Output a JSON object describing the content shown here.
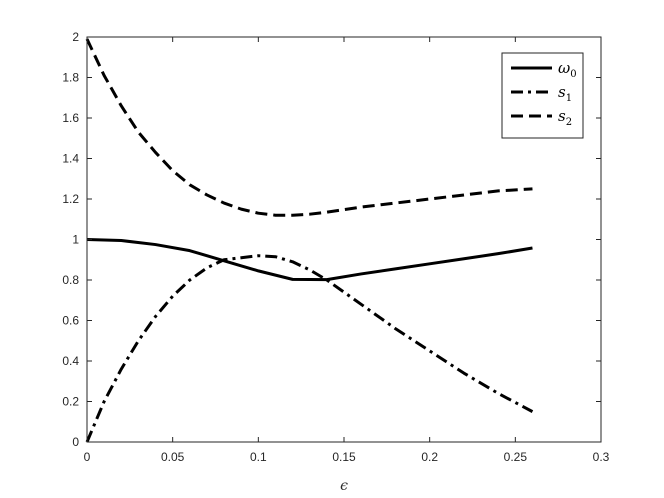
{
  "chart_data": {
    "type": "line",
    "xlabel": "ϵ",
    "ylabel": "",
    "title": "",
    "xlim": [
      0,
      0.3
    ],
    "ylim": [
      0,
      2
    ],
    "xticks": [
      "0",
      "0.05",
      "0.1",
      "0.15",
      "0.2",
      "0.25",
      "0.3"
    ],
    "yticks": [
      "0",
      "0.2",
      "0.4",
      "0.6",
      "0.8",
      "1",
      "1.2",
      "1.4",
      "1.6",
      "1.8",
      "2"
    ],
    "grid": false,
    "legend_position": "top-right",
    "colors": {
      "line": "#000000",
      "axis": "#262626"
    },
    "series": [
      {
        "name": "ω0",
        "label_base": "ω",
        "label_sub": "0",
        "style": "solid",
        "x": [
          0,
          0.02,
          0.04,
          0.06,
          0.08,
          0.1,
          0.12,
          0.14,
          0.16,
          0.18,
          0.2,
          0.22,
          0.24,
          0.26
        ],
        "y": [
          1.0,
          0.995,
          0.975,
          0.945,
          0.895,
          0.845,
          0.803,
          0.802,
          0.83,
          0.855,
          0.88,
          0.905,
          0.93,
          0.958
        ]
      },
      {
        "name": "s1",
        "label_base": "s",
        "label_sub": "1",
        "style": "dashdot",
        "x": [
          0,
          0.01,
          0.02,
          0.03,
          0.04,
          0.05,
          0.06,
          0.07,
          0.08,
          0.09,
          0.1,
          0.11,
          0.12,
          0.13,
          0.14,
          0.16,
          0.18,
          0.2,
          0.22,
          0.24,
          0.26
        ],
        "y": [
          0.0,
          0.2,
          0.36,
          0.5,
          0.62,
          0.72,
          0.8,
          0.86,
          0.9,
          0.91,
          0.92,
          0.915,
          0.89,
          0.85,
          0.8,
          0.68,
          0.56,
          0.45,
          0.34,
          0.24,
          0.15
        ]
      },
      {
        "name": "s2",
        "label_base": "s",
        "label_sub": "2",
        "style": "dashed",
        "x": [
          0,
          0.01,
          0.02,
          0.03,
          0.04,
          0.05,
          0.06,
          0.07,
          0.08,
          0.09,
          0.1,
          0.11,
          0.12,
          0.13,
          0.14,
          0.16,
          0.18,
          0.2,
          0.22,
          0.24,
          0.26
        ],
        "y": [
          1.99,
          1.81,
          1.66,
          1.53,
          1.43,
          1.34,
          1.27,
          1.22,
          1.18,
          1.15,
          1.13,
          1.12,
          1.12,
          1.125,
          1.135,
          1.16,
          1.18,
          1.2,
          1.22,
          1.24,
          1.25
        ]
      }
    ]
  }
}
